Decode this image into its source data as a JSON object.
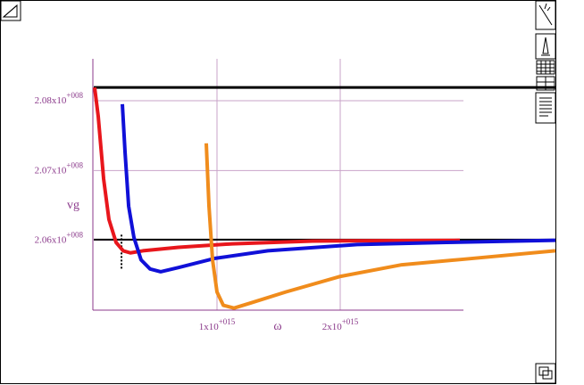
{
  "chart_data": {
    "type": "line",
    "x_label": "ω",
    "y_label": "vg",
    "xlim": [
      0,
      3000000000000000.0
    ],
    "ylim": [
      205000000,
      208600000
    ],
    "xticks": [
      {
        "value": 1000000000000000.0,
        "label": "1x10+015"
      },
      {
        "value": 2000000000000000.0,
        "label": "2x10+015"
      }
    ],
    "yticks": [
      {
        "value": 206000000,
        "label": "2.06x10+008"
      },
      {
        "value": 207000000,
        "label": "2.07x10+008"
      },
      {
        "value": 208000000,
        "label": "2.08x10+008"
      }
    ],
    "grid": true,
    "series": [
      {
        "color": "#000000",
        "width": 3,
        "x": [
          0,
          3746000000000000.0
        ],
        "values": [
          208190000,
          208190000
        ]
      },
      {
        "color": "#000000",
        "width": 2,
        "x": [
          0,
          3746000000000000.0
        ],
        "values": [
          206010000,
          206010000
        ]
      },
      {
        "color": "#000000",
        "width": 2,
        "linestyle": "dotted",
        "x": [
          225000000000000.0,
          225000000000000.0
        ],
        "values": [
          206080000,
          205590000
        ]
      },
      {
        "color": "#e8161c",
        "width": 4,
        "x": [
          7000000000000.0,
          36000000000000.0,
          80000000000000.0,
          123000000000000.0,
          181000000000000.0,
          239000000000000.0,
          297000000000000.0,
          399000000000000.0,
          688000000000000.0,
          1123000000000000.0,
          1775000000000000.0,
          2971000000000000.0
        ],
        "values": [
          208190000,
          207780000,
          206880000,
          206300000,
          205970000,
          205850000,
          205820000,
          205850000,
          205900000,
          205950000,
          205990000,
          206000000
        ]
      },
      {
        "color": "#1010d8",
        "width": 4,
        "x": [
          232000000000000.0,
          254000000000000.0,
          283000000000000.0,
          326000000000000.0,
          384000000000000.0,
          457000000000000.0,
          543000000000000.0,
          688000000000000.0,
          978000000000000.0,
          1413000000000000.0,
          2138000000000000.0,
          2862000000000000.0,
          3746000000000000.0
        ],
        "values": [
          207950000,
          207260000,
          206490000,
          206040000,
          205720000,
          205590000,
          205550000,
          205610000,
          205740000,
          205850000,
          205940000,
          205970000,
          206000000
        ]
      },
      {
        "color": "#f08c1c",
        "width": 4,
        "x": [
          913000000000000.0,
          935000000000000.0,
          964000000000000.0,
          1000000000000000.0,
          1051000000000000.0,
          1138000000000000.0,
          1268000000000000.0,
          1558000000000000.0,
          1993000000000000.0,
          2500000000000000.0,
          3007000000000000.0,
          3746000000000000.0
        ],
        "values": [
          207390000,
          206490000,
          205720000,
          205260000,
          205070000,
          205030000,
          205100000,
          205260000,
          205480000,
          205650000,
          205730000,
          205850000
        ]
      }
    ]
  }
}
